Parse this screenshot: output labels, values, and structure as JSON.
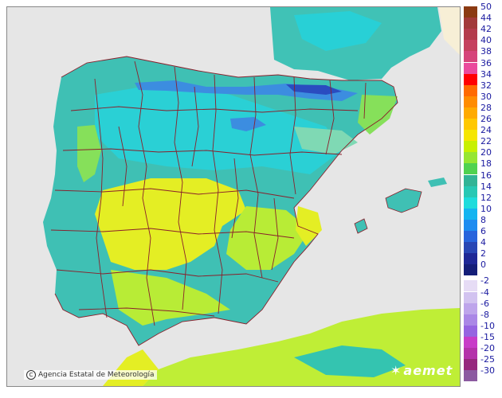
{
  "map": {
    "credit_text": "Agencia Estatal de Meteorología",
    "credit_symbol": "C",
    "brand_text": "aemet",
    "brand_icon": "aemet-logo-icon",
    "colors": {
      "sea": "#e8e8e8",
      "land_outside": "#eeeeee",
      "teal": "#3dbfb4",
      "cyan": "#27d1d8",
      "sky": "#39a6e6",
      "blue": "#3d69d6",
      "lime": "#b9ee34",
      "yellow": "#e6ef22",
      "green": "#7ee05a",
      "border": "#8a1f2b"
    }
  },
  "legend": {
    "units_note": "",
    "warm": [
      {
        "label": "50",
        "color": "#8b3a12"
      },
      {
        "label": "44",
        "color": "#a23a3a"
      },
      {
        "label": "42",
        "color": "#b33c4c"
      },
      {
        "label": "40",
        "color": "#c5405e"
      },
      {
        "label": "38",
        "color": "#d6447a"
      },
      {
        "label": "36",
        "color": "#ea4a9c"
      },
      {
        "label": "34",
        "color": "#ff0000"
      },
      {
        "label": "32",
        "color": "#ff6a00"
      },
      {
        "label": "30",
        "color": "#ff8c00"
      },
      {
        "label": "28",
        "color": "#ffaa00"
      },
      {
        "label": "26",
        "color": "#ffc800"
      },
      {
        "label": "24",
        "color": "#f5e600"
      },
      {
        "label": "22",
        "color": "#c8f000"
      },
      {
        "label": "20",
        "color": "#96e632"
      },
      {
        "label": "18",
        "color": "#50d250"
      },
      {
        "label": "16",
        "color": "#32b496"
      },
      {
        "label": "14",
        "color": "#28c8b4"
      },
      {
        "label": "12",
        "color": "#1edcdc"
      },
      {
        "label": "10",
        "color": "#14b4f0"
      },
      {
        "label": "8",
        "color": "#1e8cf0"
      },
      {
        "label": "6",
        "color": "#2864dc"
      },
      {
        "label": "4",
        "color": "#2846b4"
      },
      {
        "label": "2",
        "color": "#1e2896"
      },
      {
        "label": "0",
        "color": "#141e78"
      }
    ],
    "cold": [
      {
        "label": "-2",
        "color": "#e6dcf5"
      },
      {
        "label": "-4",
        "color": "#d2c3f0"
      },
      {
        "label": "-6",
        "color": "#bea5eb"
      },
      {
        "label": "-8",
        "color": "#aa87e6"
      },
      {
        "label": "-10",
        "color": "#9664e1"
      },
      {
        "label": "-15",
        "color": "#c83cc8"
      },
      {
        "label": "-20",
        "color": "#b432aa"
      },
      {
        "label": "-25",
        "color": "#96287d"
      },
      {
        "label": "-30",
        "color": "#8c5aa0"
      }
    ]
  }
}
